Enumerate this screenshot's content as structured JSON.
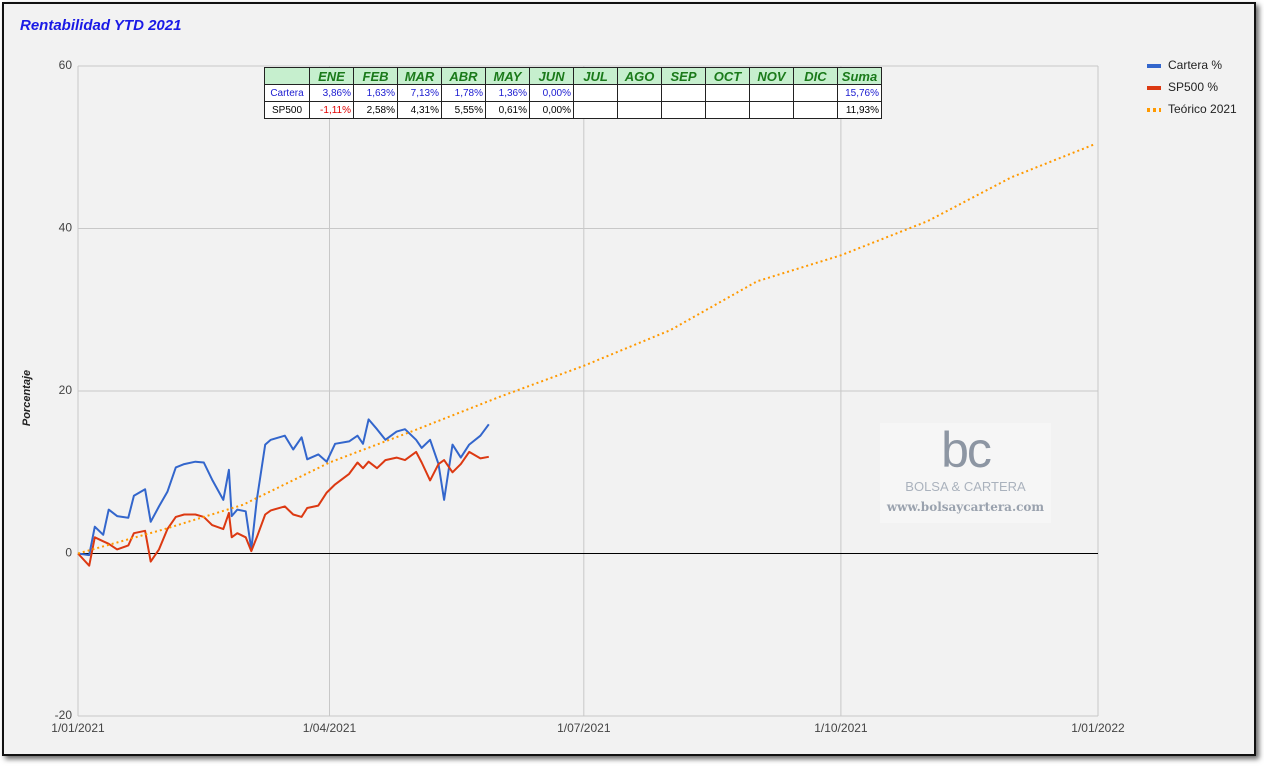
{
  "chart_data": {
    "type": "line",
    "title": "Rentabilidad YTD 2021",
    "y_label": "Porcentaje",
    "xlim": [
      "2021-01-01",
      "2022-01-01"
    ],
    "xticks": [
      {
        "value": "2021-01-01",
        "label": "1/01/2021"
      },
      {
        "value": "2021-04-01",
        "label": "1/04/2021"
      },
      {
        "value": "2021-07-01",
        "label": "1/07/2021"
      },
      {
        "value": "2021-10-01",
        "label": "1/10/2021"
      },
      {
        "value": "2022-01-01",
        "label": "1/01/2022"
      }
    ],
    "ylim": [
      -20,
      60
    ],
    "yticks": [
      -20,
      0,
      20,
      40,
      60
    ],
    "grid": true,
    "legend": "right",
    "series": [
      {
        "name": "Cartera %",
        "color": "#3366cc",
        "style": "solid",
        "x": [
          "2021-01-01",
          "2021-01-05",
          "2021-01-07",
          "2021-01-10",
          "2021-01-12",
          "2021-01-15",
          "2021-01-19",
          "2021-01-21",
          "2021-01-25",
          "2021-01-27",
          "2021-01-30",
          "2021-02-02",
          "2021-02-05",
          "2021-02-08",
          "2021-02-12",
          "2021-02-15",
          "2021-02-18",
          "2021-02-22",
          "2021-02-24",
          "2021-02-25",
          "2021-02-27",
          "2021-03-02",
          "2021-03-04",
          "2021-03-06",
          "2021-03-09",
          "2021-03-11",
          "2021-03-16",
          "2021-03-19",
          "2021-03-22",
          "2021-03-24",
          "2021-03-28",
          "2021-03-31",
          "2021-04-03",
          "2021-04-08",
          "2021-04-11",
          "2021-04-13",
          "2021-04-15",
          "2021-04-18",
          "2021-04-21",
          "2021-04-25",
          "2021-04-28",
          "2021-05-02",
          "2021-05-04",
          "2021-05-07",
          "2021-05-10",
          "2021-05-12",
          "2021-05-15",
          "2021-05-18",
          "2021-05-21",
          "2021-05-25",
          "2021-05-28"
        ],
        "values": [
          0,
          -0.2,
          3.3,
          2.3,
          5.4,
          4.6,
          4.4,
          7.1,
          7.9,
          3.9,
          5.8,
          7.6,
          10.6,
          11,
          11.3,
          11.2,
          9.1,
          6.6,
          10.3,
          4.6,
          5.4,
          5.2,
          0.5,
          6.6,
          13.4,
          14,
          14.5,
          12.8,
          14.3,
          11.6,
          12.2,
          11.3,
          13.5,
          13.8,
          14.5,
          13.5,
          16.5,
          15.3,
          14,
          15,
          15.3,
          14,
          13,
          14,
          11,
          6.6,
          13.4,
          11.8,
          13.4,
          14.5,
          15.9
        ]
      },
      {
        "name": "SP500 %",
        "color": "#dc3912",
        "style": "solid",
        "x": [
          "2021-01-01",
          "2021-01-05",
          "2021-01-07",
          "2021-01-10",
          "2021-01-12",
          "2021-01-15",
          "2021-01-19",
          "2021-01-21",
          "2021-01-25",
          "2021-01-27",
          "2021-01-30",
          "2021-02-02",
          "2021-02-05",
          "2021-02-08",
          "2021-02-12",
          "2021-02-15",
          "2021-02-18",
          "2021-02-22",
          "2021-02-24",
          "2021-02-25",
          "2021-02-27",
          "2021-03-02",
          "2021-03-04",
          "2021-03-06",
          "2021-03-09",
          "2021-03-11",
          "2021-03-16",
          "2021-03-19",
          "2021-03-22",
          "2021-03-24",
          "2021-03-28",
          "2021-03-31",
          "2021-04-03",
          "2021-04-08",
          "2021-04-11",
          "2021-04-13",
          "2021-04-15",
          "2021-04-18",
          "2021-04-21",
          "2021-04-25",
          "2021-04-28",
          "2021-05-02",
          "2021-05-04",
          "2021-05-07",
          "2021-05-10",
          "2021-05-12",
          "2021-05-15",
          "2021-05-18",
          "2021-05-21",
          "2021-05-25",
          "2021-05-28"
        ],
        "values": [
          0,
          -1.5,
          2,
          1.5,
          1.2,
          0.5,
          1,
          2.5,
          2.8,
          -1,
          0.5,
          3,
          4.5,
          4.8,
          4.8,
          4.5,
          3.5,
          3,
          5,
          2,
          2.5,
          2,
          0.3,
          2,
          4.8,
          5.3,
          5.8,
          4.8,
          4.5,
          5.6,
          5.9,
          7.5,
          8.5,
          9.8,
          11.2,
          10.5,
          11.3,
          10.5,
          11.5,
          11.8,
          11.5,
          12.5,
          11.2,
          9,
          11,
          11.5,
          10,
          11,
          12.5,
          11.7,
          11.9
        ]
      },
      {
        "name": "Teórico 2021",
        "color": "#ff9900",
        "style": "dotted",
        "x": [
          "2021-01-01",
          "2021-02-01",
          "2021-03-01",
          "2021-04-01",
          "2021-05-01",
          "2021-06-01",
          "2021-07-01",
          "2021-08-01",
          "2021-09-01",
          "2021-10-01",
          "2021-11-01",
          "2021-12-01",
          "2021-12-31"
        ],
        "values": [
          0,
          3,
          6,
          11.2,
          15.1,
          19.3,
          23.1,
          27.5,
          33.5,
          36.7,
          40.9,
          46.3,
          50.4
        ]
      }
    ]
  },
  "table": {
    "header": [
      "ENE",
      "FEB",
      "MAR",
      "ABR",
      "MAY",
      "JUN",
      "JUL",
      "AGO",
      "SEP",
      "OCT",
      "NOV",
      "DIC",
      "Suma"
    ],
    "rows": [
      {
        "name": "Cartera",
        "cells": [
          "3,86%",
          "1,63%",
          "7,13%",
          "1,78%",
          "1,36%",
          "0,00%",
          "",
          "",
          "",
          "",
          "",
          "",
          "15,76%"
        ]
      },
      {
        "name": "SP500",
        "cells": [
          "-1,11%",
          "2,58%",
          "4,31%",
          "5,55%",
          "0,61%",
          "0,00%",
          "",
          "",
          "",
          "",
          "",
          "",
          "11,93%"
        ]
      }
    ]
  },
  "watermark": {
    "logo": "bc",
    "name": "BOLSA & CARTERA",
    "url": "www.bolsaycartera.com"
  }
}
